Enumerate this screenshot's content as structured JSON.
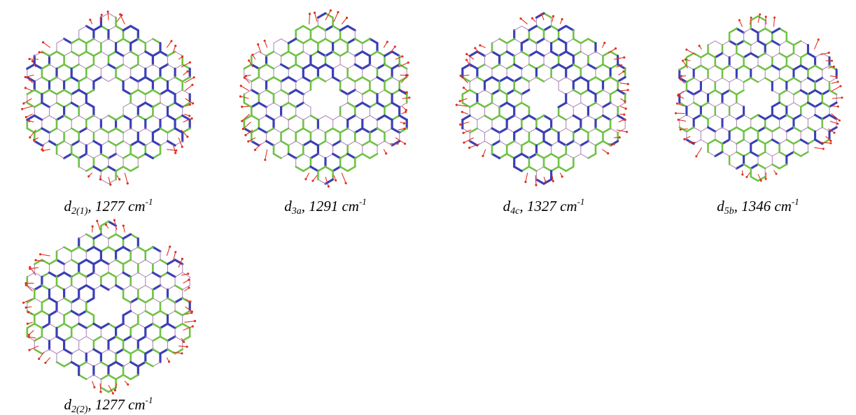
{
  "figure": {
    "panels": [
      {
        "id": "d2_1",
        "label": {
          "letter": "d",
          "sub": "2(1)",
          "rest": ", 1277 cm",
          "sup": "-1"
        },
        "hole": "center-wedge",
        "colors": {
          "strong": "#3b3fb5",
          "medium": "#6fc245",
          "weak": "#b08ab8",
          "arrow": "#e0301e"
        }
      },
      {
        "id": "d3a",
        "label": {
          "letter": "d",
          "sub": "3a",
          "rest": ", 1291 cm",
          "sup": "-1"
        },
        "hole": "center",
        "colors": {
          "strong": "#3b3fb5",
          "medium": "#6fc245",
          "weak": "#b08ab8",
          "arrow": "#e0301e"
        }
      },
      {
        "id": "d4c",
        "label": {
          "letter": "d",
          "sub": "4c",
          "rest": ", 1327 cm",
          "sup": "-1"
        },
        "hole": "center",
        "colors": {
          "strong": "#3b3fb5",
          "medium": "#6fc245",
          "weak": "#b08ab8",
          "arrow": "#e0301e"
        }
      },
      {
        "id": "d5b",
        "label": {
          "letter": "d",
          "sub": "5b",
          "rest": ", 1346 cm",
          "sup": "-1"
        },
        "hole": "center",
        "colors": {
          "strong": "#3b3fb5",
          "medium": "#6fc245",
          "weak": "#b08ab8",
          "arrow": "#e0301e"
        }
      },
      {
        "id": "d2_2",
        "label": {
          "letter": "d",
          "sub": "2(2)",
          "rest": ", 1277 cm",
          "sup": "-1"
        },
        "hole": "center-wedge",
        "colors": {
          "strong": "#3b3fb5",
          "medium": "#6fc245",
          "weak": "#b08ab8",
          "arrow": "#e0301e"
        }
      }
    ]
  }
}
